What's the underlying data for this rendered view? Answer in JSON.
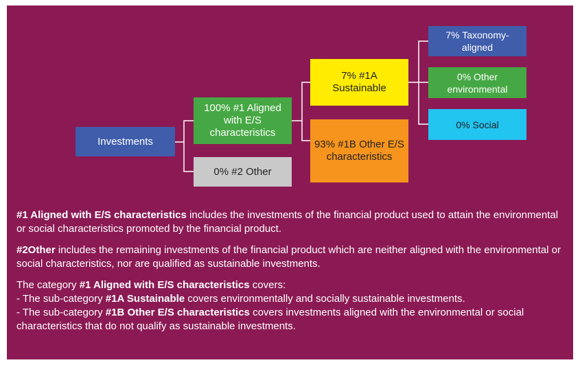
{
  "nodes": [
    {
      "label": "Investments",
      "color": "#3f5dab"
    },
    {
      "label": "100% #1 Aligned with E/S characteristics",
      "color": "#46a844"
    },
    {
      "label": "0% #2 Other",
      "color": "#c9c9c9"
    },
    {
      "label": "7% #1A Sustainable",
      "color": "#ffec00"
    },
    {
      "label": "93% #1B Other E/S characteristics",
      "color": "#f7941d"
    },
    {
      "label": "7% Taxonomy-aligned",
      "color": "#3f5dab"
    },
    {
      "label": "0% Other environmental",
      "color": "#46a844"
    },
    {
      "label": "0% Social",
      "color": "#22c4f0"
    }
  ],
  "notes": [
    [
      [
        {
          "text": "#1 Aligned with E/S characteristics",
          "bold": true
        },
        {
          "text": " includes the investments of the financial product used to attain the environmental or social characteristics promoted by the financial product.",
          "bold": false
        }
      ]
    ],
    [
      [
        {
          "text": "#2Other",
          "bold": true
        },
        {
          "text": " includes the remaining investments of the financial product which are neither aligned with the environmental or social characteristics, nor are qualified as sustainable investments.",
          "bold": false
        }
      ]
    ],
    [
      [
        {
          "text": "The category ",
          "bold": false
        },
        {
          "text": "#1 Aligned with E/S characteristics",
          "bold": true
        },
        {
          "text": " covers:",
          "bold": false
        }
      ],
      [
        {
          "text": "- The sub-category ",
          "bold": false
        },
        {
          "text": "#1A Sustainable",
          "bold": true
        },
        {
          "text": " covers environmentally and socially sustainable investments.",
          "bold": false
        }
      ],
      [
        {
          "text": "- The sub-category ",
          "bold": false
        },
        {
          "text": "#1B Other E/S characteristics",
          "bold": true
        },
        {
          "text": " covers investments aligned with the environmental or social characteristics that do not qualify as sustainable investments.",
          "bold": false
        }
      ]
    ]
  ]
}
